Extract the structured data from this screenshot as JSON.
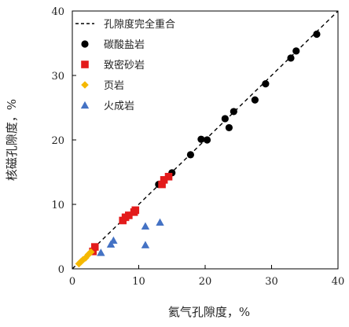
{
  "chart_data": {
    "type": "scatter",
    "title": "",
    "xlabel": "氦气孔隙度，%",
    "ylabel": "核磁孔隙度，%",
    "xlim": [
      0,
      40
    ],
    "ylim": [
      0,
      40
    ],
    "xticks": [
      0,
      10,
      20,
      30,
      40
    ],
    "yticks": [
      0,
      10,
      20,
      30,
      40
    ],
    "grid": false,
    "legend_position": "top-left",
    "reference_line": {
      "name": "孔隙度完全重合",
      "x": [
        0,
        40
      ],
      "y": [
        0,
        40
      ],
      "style": "dashed",
      "color": "#000000"
    },
    "series": [
      {
        "name": "碳酸盐岩",
        "marker": "circle",
        "color": "#000000",
        "points": [
          [
            36.8,
            36.4
          ],
          [
            33.7,
            33.8
          ],
          [
            32.9,
            32.7
          ],
          [
            29.1,
            28.7
          ],
          [
            27.5,
            26.2
          ],
          [
            24.3,
            24.4
          ],
          [
            23.0,
            23.3
          ],
          [
            23.6,
            21.9
          ],
          [
            20.3,
            20.0
          ],
          [
            19.4,
            20.1
          ],
          [
            17.8,
            17.7
          ],
          [
            15.0,
            14.9
          ],
          [
            13.0,
            13.1
          ]
        ]
      },
      {
        "name": "致密砂岩",
        "marker": "square",
        "color": "#e31b1b",
        "points": [
          [
            14.5,
            14.3
          ],
          [
            13.5,
            13.1
          ],
          [
            13.8,
            13.8
          ],
          [
            9.5,
            9.1
          ],
          [
            9.3,
            8.8
          ],
          [
            8.5,
            8.3
          ],
          [
            8.0,
            8.0
          ],
          [
            7.6,
            7.5
          ],
          [
            3.4,
            3.4
          ],
          [
            3.1,
            2.7
          ]
        ]
      },
      {
        "name": "页岩",
        "marker": "diamond",
        "color": "#f5b800",
        "points": [
          [
            1.0,
            0.8
          ],
          [
            1.3,
            1.1
          ],
          [
            1.6,
            1.4
          ],
          [
            2.0,
            1.7
          ],
          [
            2.4,
            2.2
          ],
          [
            2.8,
            2.6
          ]
        ]
      },
      {
        "name": "火成岩",
        "marker": "triangle",
        "color": "#4472c4",
        "points": [
          [
            4.3,
            2.5
          ],
          [
            5.8,
            3.8
          ],
          [
            6.2,
            4.4
          ],
          [
            11.0,
            6.6
          ],
          [
            11.0,
            3.7
          ],
          [
            13.2,
            7.2
          ]
        ]
      }
    ]
  }
}
